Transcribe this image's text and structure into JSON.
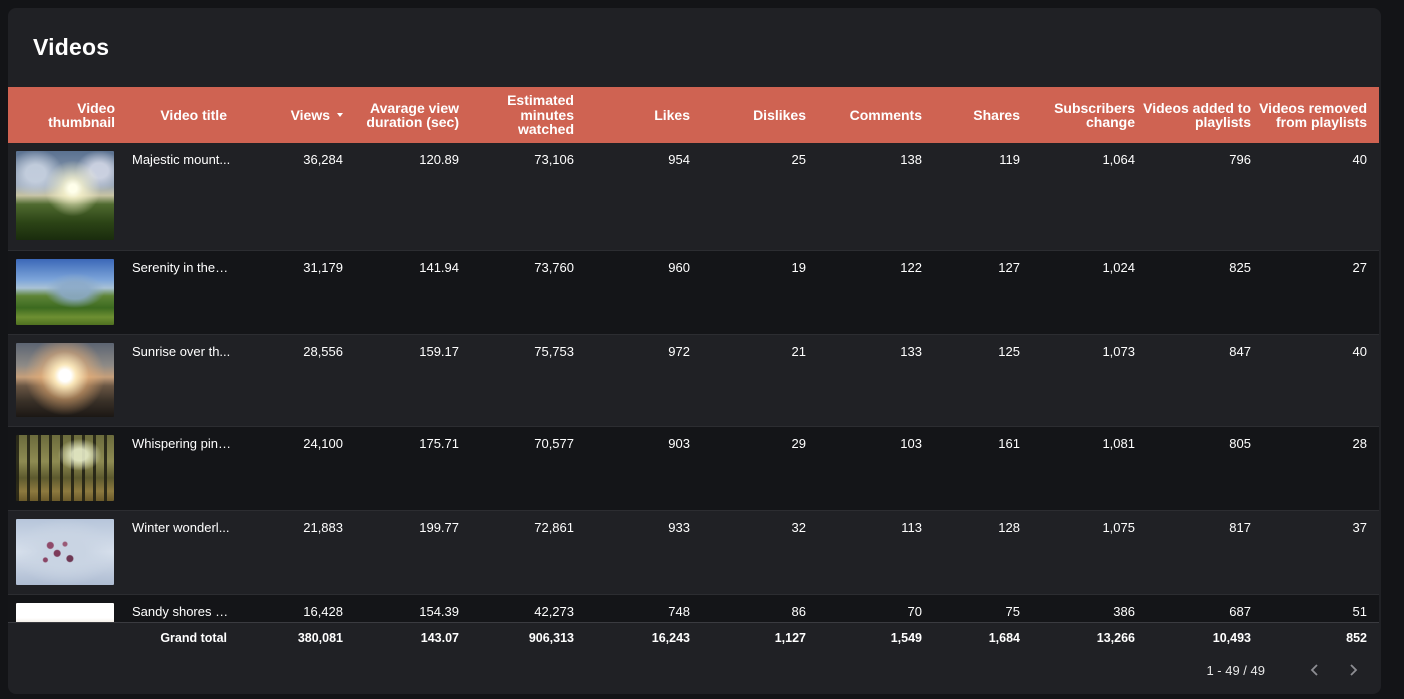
{
  "card": {
    "title": "Videos"
  },
  "columns": [
    "Video thumbnail",
    "Video title",
    "Views",
    "Avarage view duration (sec)",
    "Estimated minutes watched",
    "Likes",
    "Dislikes",
    "Comments",
    "Shares",
    "Subscribers change",
    "Videos added to playlists",
    "Videos removed from playlists"
  ],
  "sort": {
    "column": "Views",
    "direction": "descending",
    "icon": "sort-desc-icon"
  },
  "rows": [
    {
      "thumbnail": "mountain-sunrise-image",
      "title": "Majestic mount...",
      "views": "36,284",
      "avg_duration": "120.89",
      "minutes": "73,106",
      "likes": "954",
      "dislikes": "25",
      "comments": "138",
      "shares": "119",
      "subscribers": "1,064",
      "added": "796",
      "removed": "40"
    },
    {
      "thumbnail": "green-valley-image",
      "title": "Serenity in the f...",
      "views": "31,179",
      "avg_duration": "141.94",
      "minutes": "73,760",
      "likes": "960",
      "dislikes": "19",
      "comments": "122",
      "shares": "127",
      "subscribers": "1,024",
      "added": "825",
      "removed": "27"
    },
    {
      "thumbnail": "sunrise-image",
      "title": "Sunrise over th...",
      "views": "28,556",
      "avg_duration": "159.17",
      "minutes": "75,753",
      "likes": "972",
      "dislikes": "21",
      "comments": "133",
      "shares": "125",
      "subscribers": "1,073",
      "added": "847",
      "removed": "40"
    },
    {
      "thumbnail": "pine-forest-image",
      "title": "Whispering pine...",
      "views": "24,100",
      "avg_duration": "175.71",
      "minutes": "70,577",
      "likes": "903",
      "dislikes": "29",
      "comments": "103",
      "shares": "161",
      "subscribers": "1,081",
      "added": "805",
      "removed": "28"
    },
    {
      "thumbnail": "winter-berries-image",
      "title": "Winter wonderl...",
      "views": "21,883",
      "avg_duration": "199.77",
      "minutes": "72,861",
      "likes": "933",
      "dislikes": "32",
      "comments": "113",
      "shares": "128",
      "subscribers": "1,075",
      "added": "817",
      "removed": "37"
    },
    {
      "thumbnail": "sandy-shore-image",
      "title": "Sandy shores a...",
      "views": "16,428",
      "avg_duration": "154.39",
      "minutes": "42,273",
      "likes": "748",
      "dislikes": "86",
      "comments": "70",
      "shares": "75",
      "subscribers": "386",
      "added": "687",
      "removed": "51"
    }
  ],
  "total": {
    "label": "Grand total",
    "views": "380,081",
    "avg_duration": "143.07",
    "minutes": "906,313",
    "likes": "16,243",
    "dislikes": "1,127",
    "comments": "1,549",
    "shares": "1,684",
    "subscribers": "13,266",
    "added": "10,493",
    "removed": "852"
  },
  "pagination": {
    "range": "1 - 49 / 49",
    "prev_icon": "chevron-left-icon",
    "next_icon": "chevron-right-icon"
  },
  "colors": {
    "header_bg": "#cf6352",
    "card_bg": "#202125",
    "page_bg": "#131417",
    "alt_row_bg": "#141518"
  }
}
